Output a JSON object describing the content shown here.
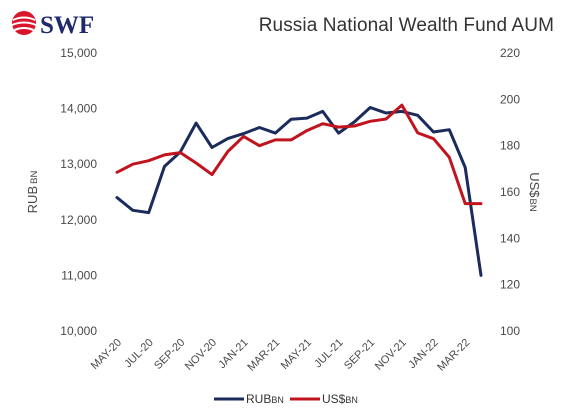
{
  "logo": {
    "text": "SWF",
    "brand_color": "#1f2a6b",
    "accent_color": "#d8152a"
  },
  "chart_data": {
    "type": "line",
    "title": "Russia National Wealth Fund AUM",
    "x_tick_labels": [
      "MAY-20",
      "JUL-20",
      "SEP-20",
      "NOV-20",
      "JAN-21",
      "MAR-21",
      "MAY-21",
      "JUL-21",
      "SEP-21",
      "NOV-21",
      "JAN-22",
      "MAR-22"
    ],
    "x": [
      "MAY-20",
      "JUN-20",
      "JUL-20",
      "AUG-20",
      "SEP-20",
      "OCT-20",
      "NOV-20",
      "DEC-20",
      "JAN-21",
      "FEB-21",
      "MAR-21",
      "APR-21",
      "MAY-21",
      "JUN-21",
      "JUL-21",
      "AUG-21",
      "SEP-21",
      "OCT-21",
      "NOV-21",
      "DEC-21",
      "JAN-22",
      "FEB-22",
      "MAR-22",
      "APR-22"
    ],
    "series": [
      {
        "name": "RUBBN",
        "axis": "left",
        "color": "#1a2b5c",
        "values": [
          12400,
          12170,
          12130,
          12960,
          13220,
          13740,
          13300,
          13460,
          13550,
          13660,
          13560,
          13810,
          13830,
          13950,
          13560,
          13760,
          14020,
          13920,
          13950,
          13880,
          13580,
          13620,
          12940,
          11000
        ]
      },
      {
        "name": "US$BN",
        "axis": "right",
        "color": "#c0141e",
        "values": [
          168.5,
          172,
          173.5,
          176,
          177,
          172.5,
          167.5,
          177.5,
          184,
          180,
          182.5,
          182.5,
          186.5,
          189.5,
          188,
          188.5,
          190.5,
          191.5,
          197.5,
          185.5,
          183,
          175,
          155,
          155
        ]
      }
    ],
    "left_axis": {
      "label_main": "RUB",
      "label_unit": "BN",
      "ylim": [
        10000,
        15000
      ],
      "ticks": [
        "10,000",
        "11,000",
        "12,000",
        "13,000",
        "14,000",
        "15,000"
      ]
    },
    "right_axis": {
      "label_main": "US$",
      "label_unit": "BN",
      "ylim": [
        100,
        220
      ],
      "ticks": [
        "100",
        "120",
        "140",
        "160",
        "180",
        "200",
        "220"
      ]
    },
    "legend": {
      "position": "bottom",
      "items": [
        {
          "main": "RUB",
          "unit": "BN",
          "color": "#1a2b5c"
        },
        {
          "main": "US$",
          "unit": "BN",
          "color": "#c0141e"
        }
      ]
    },
    "grid": false
  }
}
